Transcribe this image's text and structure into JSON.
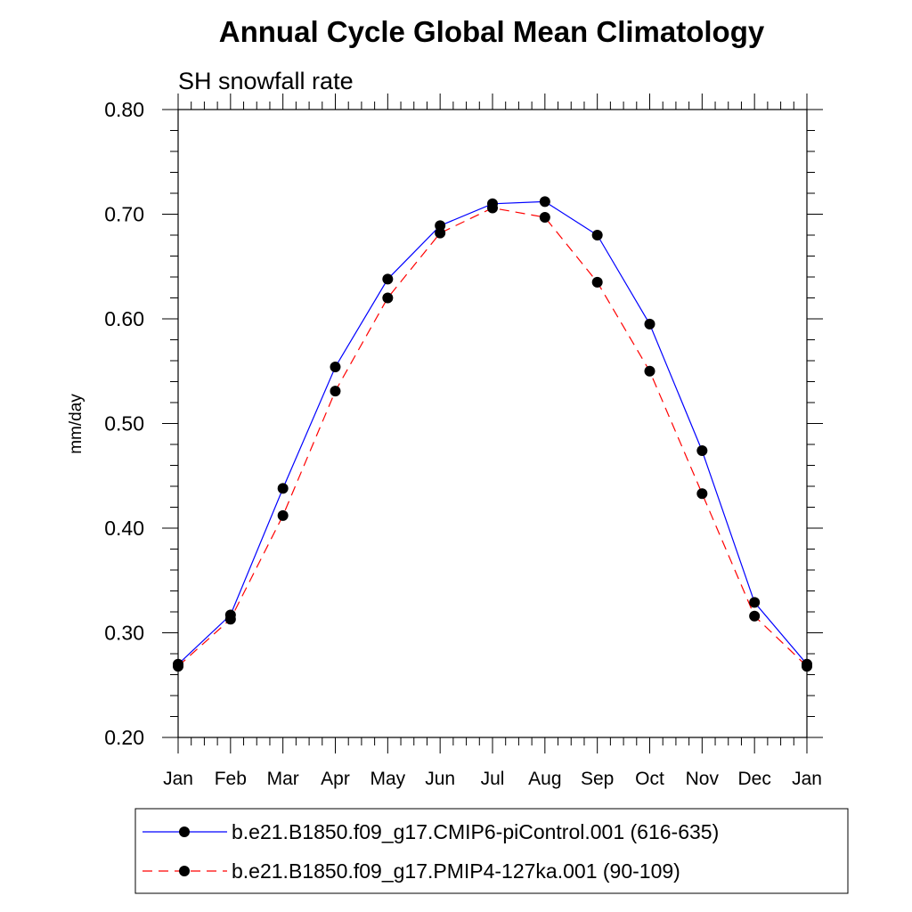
{
  "chart_data": {
    "type": "line",
    "title": "Annual Cycle Global Mean Climatology",
    "subtitle": "SH snowfall rate",
    "ylabel": "mm/day",
    "xlabel": "",
    "categories": [
      "Jan",
      "Feb",
      "Mar",
      "Apr",
      "May",
      "Jun",
      "Jul",
      "Aug",
      "Sep",
      "Oct",
      "Nov",
      "Dec",
      "Jan"
    ],
    "ylim": [
      0.2,
      0.8
    ],
    "yticks": [
      "0.20",
      "0.30",
      "0.40",
      "0.50",
      "0.60",
      "0.70",
      "0.80"
    ],
    "grid": false,
    "legend_position": "bottom",
    "series": [
      {
        "name": "b.e21.B1850.f09_g17.CMIP6-piControl.001 (616-635)",
        "color": "#0000ff",
        "dash": "solid",
        "values": [
          0.27,
          0.317,
          0.438,
          0.554,
          0.638,
          0.689,
          0.71,
          0.712,
          0.68,
          0.595,
          0.474,
          0.329,
          0.27
        ]
      },
      {
        "name": "b.e21.B1850.f09_g17.PMIP4-127ka.001 (90-109)",
        "color": "#ff0000",
        "dash": "dashed",
        "values": [
          0.268,
          0.313,
          0.412,
          0.531,
          0.62,
          0.682,
          0.706,
          0.697,
          0.635,
          0.55,
          0.433,
          0.316,
          0.268
        ]
      }
    ]
  }
}
